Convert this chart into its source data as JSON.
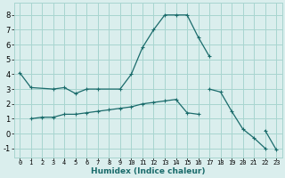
{
  "xlabel": "Humidex (Indice chaleur)",
  "background_color": "#daeeed",
  "grid_color": "#a8d5d0",
  "line_color": "#1a6b6b",
  "xlim": [
    -0.5,
    23.5
  ],
  "ylim": [
    -1.6,
    8.8
  ],
  "xtick_vals": [
    0,
    1,
    2,
    3,
    4,
    5,
    6,
    7,
    8,
    9,
    10,
    11,
    12,
    13,
    14,
    15,
    16,
    17,
    18,
    19,
    20,
    21,
    22,
    23
  ],
  "ytick_vals": [
    -1,
    0,
    1,
    2,
    3,
    4,
    5,
    6,
    7,
    8
  ],
  "connected_series": [
    {
      "x": [
        0,
        1,
        3,
        4,
        5,
        6,
        7,
        9,
        10,
        11,
        12,
        13,
        14,
        15,
        16,
        17
      ],
      "y": [
        4.1,
        3.1,
        3.0,
        3.1,
        2.7,
        3.0,
        3.0,
        3.0,
        4.0,
        5.8,
        7.0,
        8.0,
        8.0,
        8.0,
        6.5,
        5.2
      ]
    },
    {
      "x": [
        17,
        18,
        19,
        20,
        21,
        22
      ],
      "y": [
        3.0,
        2.8,
        1.5,
        0.3,
        -0.3,
        -1.0
      ]
    },
    {
      "x": [
        1,
        2,
        3,
        4,
        5,
        6,
        7,
        8,
        9,
        10,
        11,
        12,
        13,
        14,
        15,
        16
      ],
      "y": [
        1.0,
        1.1,
        1.1,
        1.3,
        1.3,
        1.4,
        1.5,
        1.6,
        1.7,
        1.8,
        2.0,
        2.1,
        2.2,
        2.3,
        1.4,
        1.3
      ]
    },
    {
      "x": [
        22,
        23
      ],
      "y": [
        0.2,
        -1.1
      ]
    }
  ]
}
